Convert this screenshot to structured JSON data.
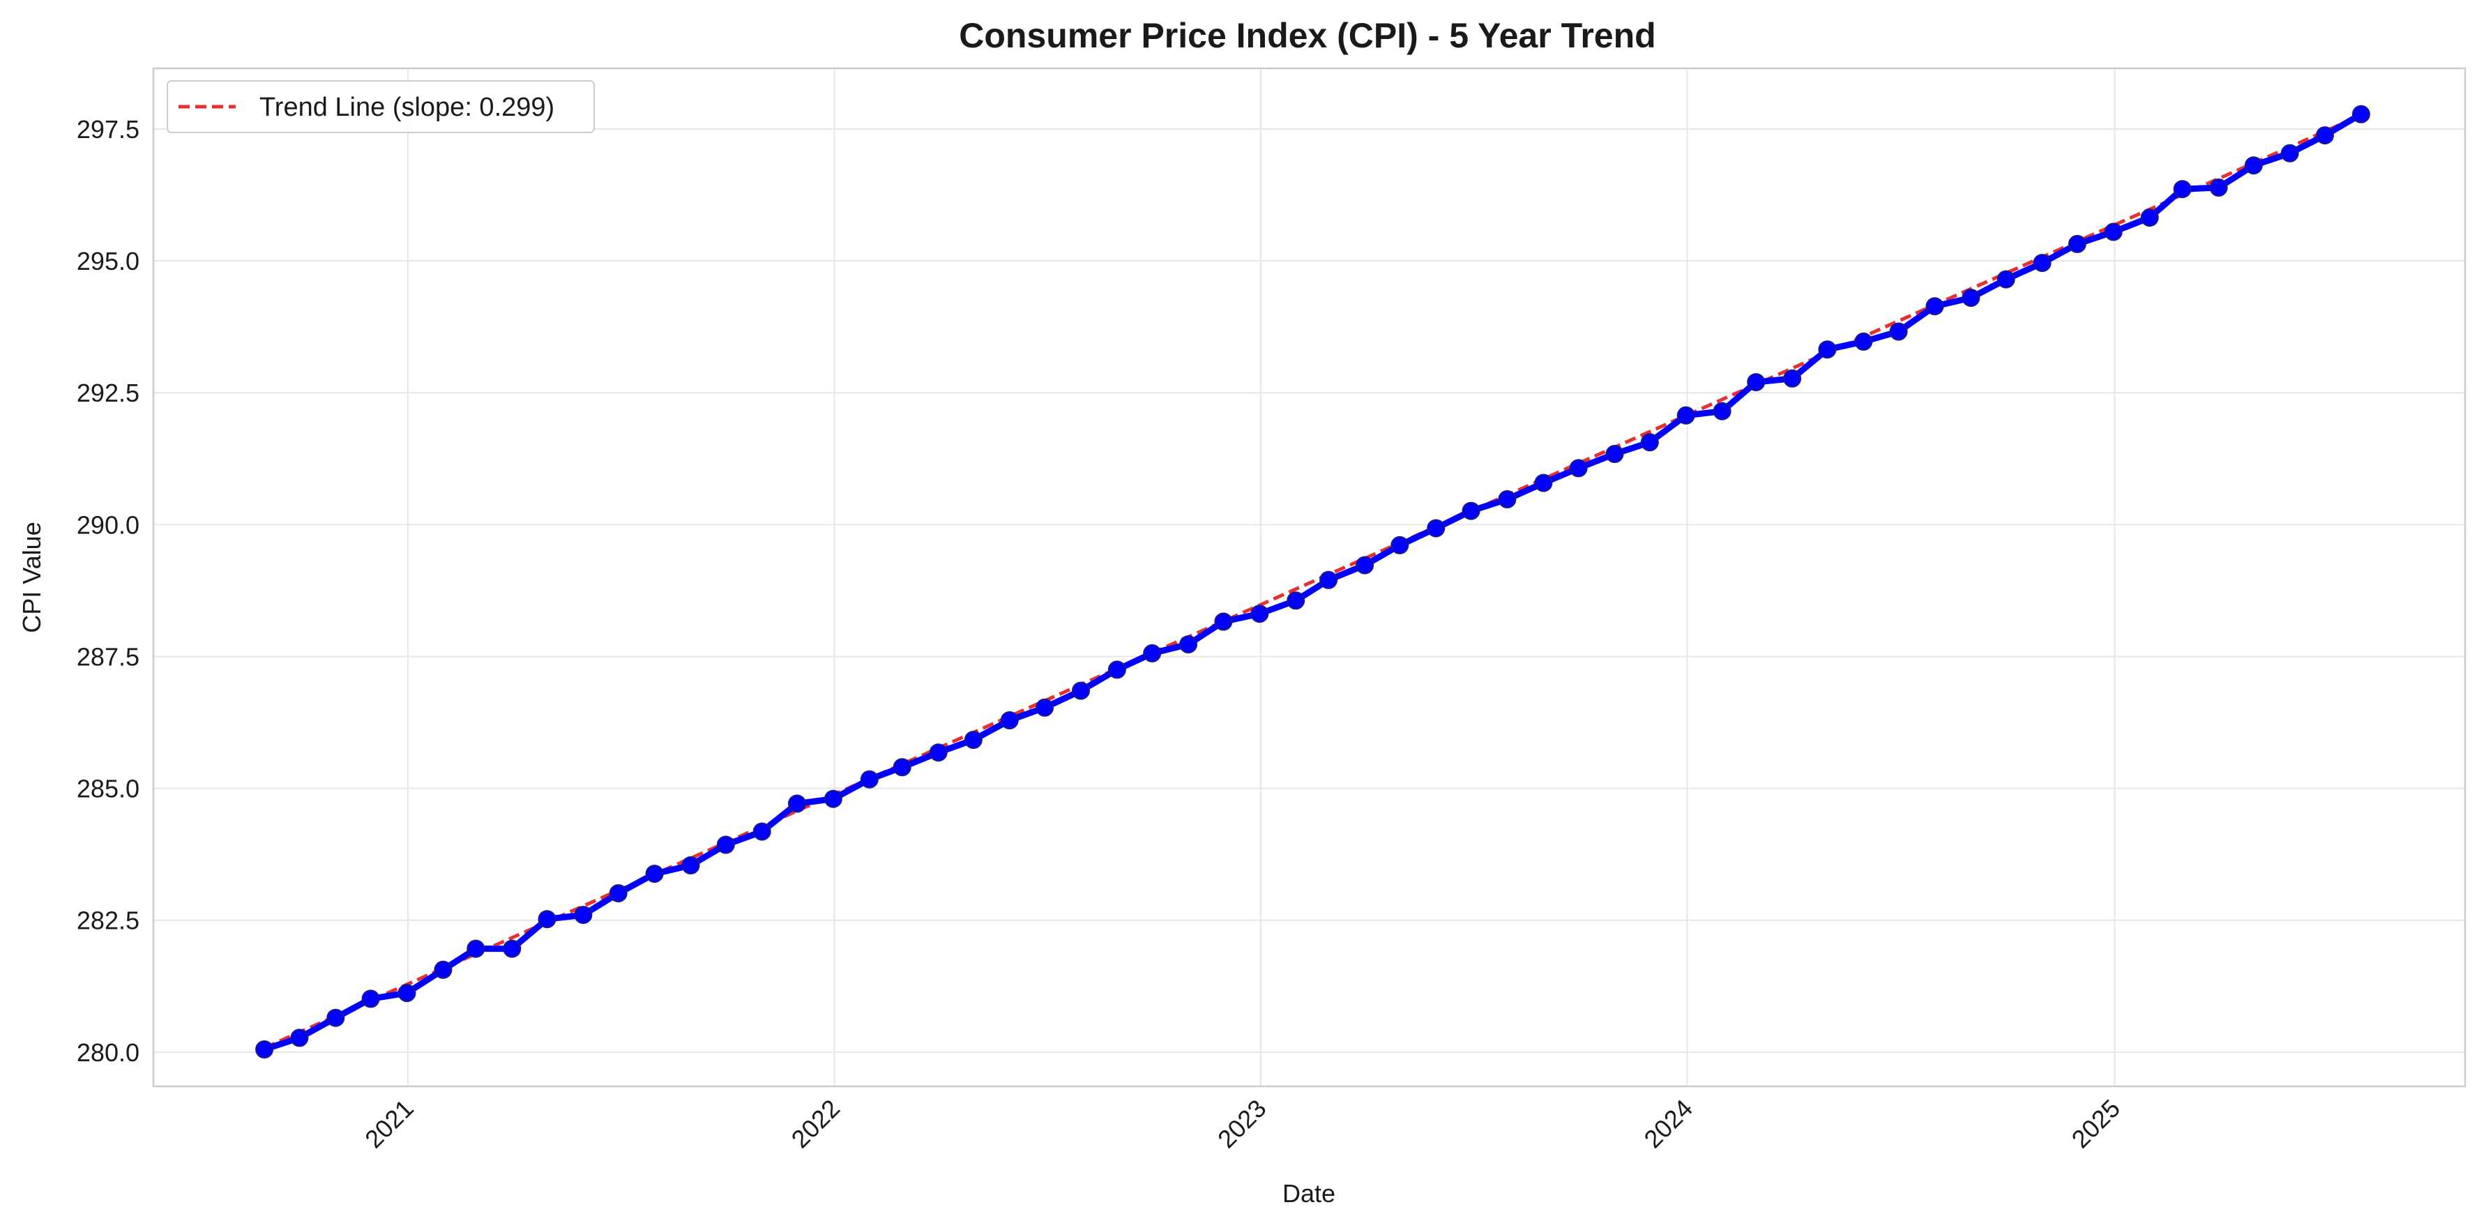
{
  "chart_data": {
    "type": "line",
    "title": "Consumer Price Index (CPI) - 5 Year Trend",
    "xlabel": "Date",
    "ylabel": "CPI Value",
    "ylim": [
      279.35,
      298.65
    ],
    "xlim": [
      "2020-05-28",
      "2025-10-28"
    ],
    "grid": true,
    "legend_position": "top-left",
    "y_ticks": [
      "280.0",
      "282.5",
      "285.0",
      "287.5",
      "290.0",
      "292.5",
      "295.0",
      "297.5"
    ],
    "x_ticks": [
      {
        "label": "2021",
        "date": "2021-01-01"
      },
      {
        "label": "2022",
        "date": "2022-01-01"
      },
      {
        "label": "2023",
        "date": "2023-01-01"
      },
      {
        "label": "2024",
        "date": "2024-01-01"
      },
      {
        "label": "2025",
        "date": "2025-01-01"
      }
    ],
    "colors": {
      "series": "#0000ff",
      "series_edge": "#1a1a8c",
      "trend": "#e83030"
    },
    "series": [
      {
        "name": "",
        "style": "solid-markers",
        "x": [
          "2020-08-31",
          "2020-09-30",
          "2020-10-31",
          "2020-11-30",
          "2020-12-31",
          "2021-01-31",
          "2021-02-28",
          "2021-03-31",
          "2021-04-30",
          "2021-05-31",
          "2021-06-30",
          "2021-07-31",
          "2021-08-31",
          "2021-09-30",
          "2021-10-31",
          "2021-11-30",
          "2021-12-31",
          "2022-01-31",
          "2022-02-28",
          "2022-03-31",
          "2022-04-30",
          "2022-05-31",
          "2022-06-30",
          "2022-07-31",
          "2022-08-31",
          "2022-09-30",
          "2022-10-31",
          "2022-11-30",
          "2022-12-31",
          "2023-01-31",
          "2023-02-28",
          "2023-03-31",
          "2023-04-30",
          "2023-05-31",
          "2023-06-30",
          "2023-07-31",
          "2023-08-31",
          "2023-09-30",
          "2023-10-31",
          "2023-11-30",
          "2023-12-31",
          "2024-01-31",
          "2024-02-29",
          "2024-03-31",
          "2024-04-30",
          "2024-05-31",
          "2024-06-30",
          "2024-07-31",
          "2024-08-31",
          "2024-09-30",
          "2024-10-31",
          "2024-11-30",
          "2024-12-31",
          "2025-01-31",
          "2025-02-28",
          "2025-03-31",
          "2025-04-30",
          "2025-05-31",
          "2025-06-30",
          "2025-07-31"
        ],
        "values": [
          280.05,
          280.27,
          280.65,
          281.01,
          281.12,
          281.56,
          281.96,
          281.96,
          282.52,
          282.6,
          283.01,
          283.38,
          283.54,
          283.93,
          284.18,
          284.71,
          284.8,
          285.17,
          285.4,
          285.68,
          285.92,
          286.29,
          286.53,
          286.85,
          287.25,
          287.56,
          287.73,
          288.16,
          288.31,
          288.56,
          288.95,
          289.23,
          289.61,
          289.93,
          290.26,
          290.48,
          290.79,
          291.07,
          291.34,
          291.56,
          292.07,
          292.15,
          292.7,
          292.77,
          293.32,
          293.47,
          293.66,
          294.14,
          294.3,
          294.65,
          294.96,
          295.32,
          295.55,
          295.82,
          296.36,
          296.39,
          296.81,
          297.04,
          297.38,
          297.78
        ]
      },
      {
        "name": "Trend Line (slope: 0.299)",
        "style": "dashed",
        "x": [
          "2020-08-31",
          "2025-07-31"
        ],
        "values": [
          280.08,
          297.76
        ]
      }
    ]
  }
}
